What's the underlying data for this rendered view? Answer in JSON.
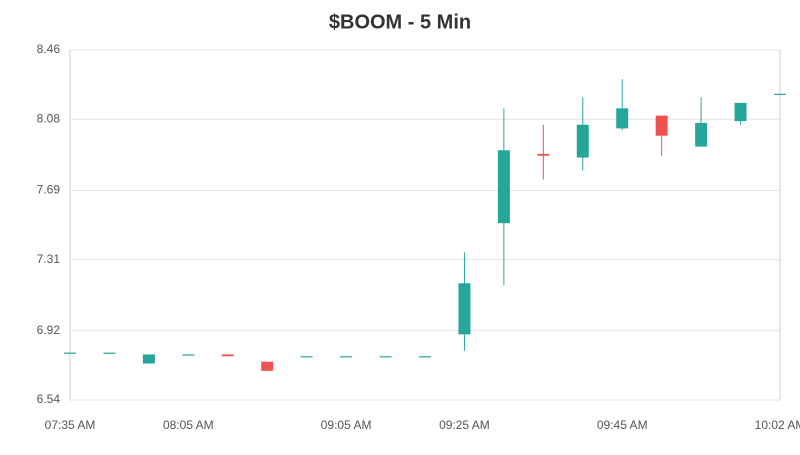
{
  "chart_data": {
    "type": "candlestick",
    "title": "$BOOM - 5 Min",
    "categories": [
      "07:35 AM",
      null,
      null,
      "08:05 AM",
      null,
      null,
      null,
      "09:05 AM",
      null,
      null,
      "09:25 AM",
      null,
      null,
      null,
      "09:45 AM",
      null,
      null,
      null,
      "10:02 AM"
    ],
    "open": [
      6.8,
      6.8,
      6.74,
      6.79,
      6.79,
      6.75,
      6.78,
      6.78,
      6.78,
      6.78,
      6.9,
      7.51,
      7.89,
      7.87,
      8.03,
      8.1,
      7.93,
      8.07,
      8.22
    ],
    "high": [
      6.8,
      6.8,
      6.79,
      6.79,
      6.79,
      6.75,
      6.78,
      6.78,
      6.78,
      6.78,
      7.35,
      8.14,
      8.05,
      8.2,
      8.3,
      8.1,
      8.2,
      8.17,
      8.22
    ],
    "low": [
      6.8,
      6.8,
      6.74,
      6.79,
      6.78,
      6.7,
      6.78,
      6.78,
      6.78,
      6.78,
      6.81,
      7.17,
      7.75,
      7.8,
      8.02,
      7.88,
      7.93,
      8.05,
      8.22
    ],
    "close": [
      6.8,
      6.8,
      6.79,
      6.79,
      6.78,
      6.7,
      6.78,
      6.78,
      6.78,
      6.78,
      7.18,
      7.91,
      7.88,
      8.05,
      8.14,
      7.99,
      8.06,
      8.17,
      8.22
    ],
    "up_color": "#26a69a",
    "down_color": "#ef5350",
    "ylim": [
      6.54,
      8.46
    ],
    "yticks": [
      6.54,
      6.92,
      7.31,
      7.69,
      8.08,
      8.46
    ],
    "grid": true
  }
}
